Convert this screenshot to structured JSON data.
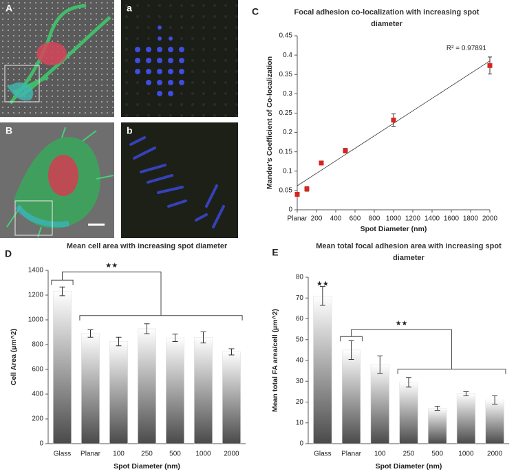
{
  "panels": [
    {
      "label": "A"
    },
    {
      "label": "a"
    },
    {
      "label": "B"
    },
    {
      "label": "b"
    }
  ],
  "chart_data": [
    {
      "type": "scatter",
      "panel": "C",
      "title": [
        "Focal adhesion co-localization with increasing spot",
        "diameter"
      ],
      "x_label": "Spot Diameter (nm)",
      "y_label": "Mander's Coefficient of Co-localization",
      "annotation": "R² = 0.97891",
      "x": [
        0,
        100,
        250,
        500,
        1000,
        2000
      ],
      "values": [
        0.04,
        0.054,
        0.121,
        0.153,
        0.232,
        0.373
      ],
      "errors": [
        0.004,
        0.006,
        0.003,
        0.006,
        0.016,
        0.022
      ],
      "color": "#d7261e",
      "trendline": {
        "x": [
          0,
          2000
        ],
        "y": [
          0.062,
          0.385
        ]
      },
      "xlim": [
        0,
        2000
      ],
      "xticks": [
        {
          "value": 0,
          "label": "Planar"
        },
        200,
        400,
        600,
        800,
        1000,
        1200,
        1400,
        1600,
        1800,
        2000
      ],
      "ylim": [
        0,
        0.45
      ],
      "yticks": [
        0,
        0.05,
        0.1,
        0.15,
        0.2,
        0.25,
        0.3,
        0.35,
        0.4,
        0.45
      ]
    },
    {
      "type": "bar",
      "panel": "D",
      "title": [
        "Mean cell area with increasing spot diameter"
      ],
      "x_label": "Spot Diameter (nm)",
      "y_label": "Cell Area (µm^2)",
      "annotations": [
        "★★"
      ],
      "categories": [
        "Glass",
        "Planar",
        "100",
        "250",
        "500",
        "1000",
        "2000"
      ],
      "values": [
        1230,
        890,
        825,
        928,
        855,
        858,
        742
      ],
      "errors": [
        35,
        30,
        35,
        40,
        30,
        45,
        25
      ],
      "ylim": [
        0,
        1400
      ],
      "yticks": [
        0,
        200,
        400,
        600,
        800,
        1000,
        1200,
        1400
      ]
    },
    {
      "type": "bar",
      "panel": "E",
      "title": [
        "Mean total focal adhesion area with increasing spot",
        "diameter"
      ],
      "x_label": "Spot Diameter (nm)",
      "y_label": "Mean total FA area/cell (µm^2)",
      "annotations": [
        "★★",
        "★★"
      ],
      "categories": [
        "Glass",
        "Planar",
        "100",
        "250",
        "500",
        "1000",
        "2000"
      ],
      "values": [
        71,
        45,
        38,
        29.5,
        17,
        24,
        21
      ],
      "errors": [
        4.5,
        4.5,
        4.2,
        2.3,
        1,
        1,
        2
      ],
      "ylim": [
        0,
        80
      ],
      "yticks": [
        0,
        10,
        20,
        30,
        40,
        50,
        60,
        70,
        80
      ]
    }
  ]
}
